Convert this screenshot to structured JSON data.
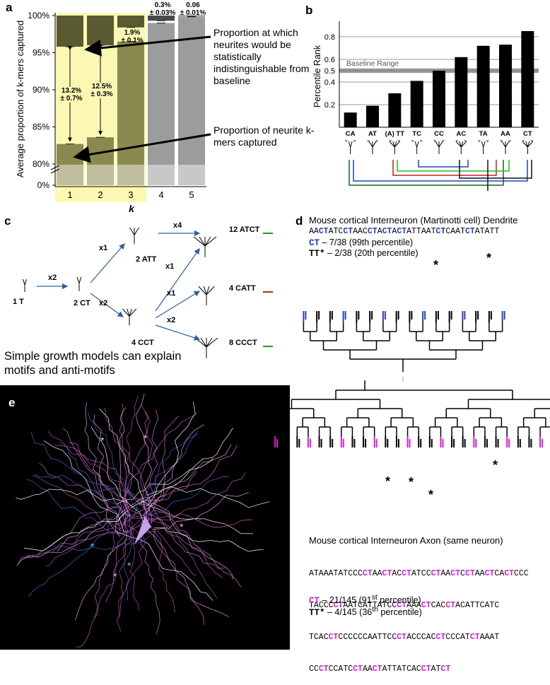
{
  "chart_data": [
    {
      "type": "bar",
      "panel_label": "a",
      "ylabel": "Average proportion of k-mers captured",
      "xlabel": "k",
      "categories": [
        "1",
        "2",
        "3",
        "4",
        "5"
      ],
      "series": [
        {
          "name": "Proportion of neurite k-mers captured",
          "colors": [
            "#8a8a50",
            "#8a8a50",
            "#8a8a50",
            "#9c9c9c",
            "#9c9c9c"
          ],
          "values": [
            82.7,
            83.6,
            96.5,
            99.0,
            99.84
          ]
        },
        {
          "name": "Proportion at which neurites would be statistically indistinguishable from baseline",
          "colors": [
            "#5a5a32",
            "#5a5a32",
            "#5a5a32",
            "#4a4a4a",
            "#4a4a4a"
          ],
          "values": [
            95.8,
            96.0,
            98.4,
            99.3,
            99.9
          ]
        }
      ],
      "difference_labels": [
        [
          "13.2%",
          "± 0.7%"
        ],
        [
          "12.5%",
          "± 0.3%"
        ],
        [
          "1.9%",
          "± 0.1%"
        ],
        [
          "0.3%",
          "± 0.03%"
        ],
        [
          "0.06",
          "± 0.01%"
        ]
      ],
      "ylim": [
        0,
        100
      ],
      "ybreak": [
        0,
        80
      ],
      "yticks": [
        {
          "value": 0,
          "label": "0%"
        },
        {
          "value": 80,
          "label": "80%"
        },
        {
          "value": 85,
          "label": "85%"
        },
        {
          "value": 90,
          "label": "90%"
        },
        {
          "value": 95,
          "label": "95%"
        },
        {
          "value": 100,
          "label": "100%"
        }
      ]
    },
    {
      "type": "bar",
      "panel_label": "b",
      "ylabel": "Percentile Rank",
      "categories": [
        "CA",
        "AT",
        "(A) TT",
        "TC",
        "CC",
        "AC",
        "TA",
        "AA",
        "CT"
      ],
      "values": [
        0.13,
        0.19,
        0.3,
        0.41,
        0.5,
        0.62,
        0.72,
        0.73,
        0.85
      ],
      "color": "#000000",
      "ylim": [
        0,
        0.9
      ],
      "yticks": [
        0.2,
        0.4,
        0.5,
        0.6,
        0.8
      ],
      "grid": true,
      "baseline_range": [
        0.48,
        0.52
      ],
      "baseline_label": "Baseline Range"
    }
  ],
  "asterisk": "*",
  "panel_c": {
    "label": "c",
    "nodes": [
      "1 T",
      "2 CT",
      "2 ATT",
      "4 CCT",
      "12 ATCT",
      "4 CATT",
      "8 CCCT"
    ],
    "edges": [
      "x2",
      "x1",
      "x2",
      "x4",
      "x1",
      "x1",
      "x2"
    ],
    "caption": [
      "Simple growth models can explain",
      "motifs and anti-motifs"
    ]
  },
  "panel_d": {
    "label": "d",
    "dendrite": {
      "title": "Mouse cortical Interneuron (Martinotti cell) Dendrite",
      "sequence": [
        "AACTATCCTAACCTACTACTATTAATCTCAATCTATATT"
      ],
      "stats": [
        {
          "motif": "CT",
          "text": "– 7/38 (99th percentile)"
        },
        {
          "motif": "TT*",
          "text": "– 2/38 (20th percentile)"
        }
      ]
    },
    "axon": {
      "title": "Mouse cortical Interneuron Axon (same neuron)",
      "sequence": [
        "ATAAATATCCCCTAACTACCTATCCCTAACTCCTAACTCACTCCC",
        "TACCCCTAATCATTATCCCTAAACTCACCTACATTCATC",
        "TCACCTCCCCCCAATTCCCTACCCACCTCCCATCTAAAT",
        "CCCTCCATCCTAACTATTATCACCTATCT"
      ],
      "stats": [
        {
          "motif": "CT",
          "text": "– 21/145 (91",
          "sup": "st",
          "tail": " percentile)"
        },
        {
          "motif": "TT*",
          "text": "– 4/145 (36",
          "sup": "th",
          "tail": " percentile)"
        }
      ]
    }
  },
  "panel_e": {
    "label": "e"
  }
}
